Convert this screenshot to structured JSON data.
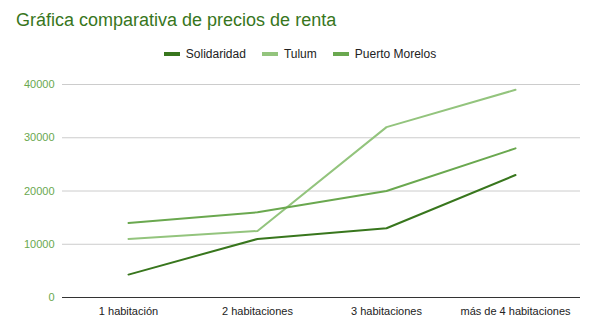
{
  "chart_data": {
    "type": "line",
    "title": "Gráfica comparativa de precios de renta",
    "categories": [
      "1 habitación",
      "2 habitaciones",
      "3 habitaciones",
      "más de 4 habitaciones"
    ],
    "series": [
      {
        "name": "Solidaridad",
        "color": "#38761d",
        "values": [
          4300,
          11000,
          13000,
          23000
        ]
      },
      {
        "name": "Tulum",
        "color": "#93c47d",
        "values": [
          11000,
          12500,
          32000,
          39000
        ]
      },
      {
        "name": "Puerto Morelos",
        "color": "#6aa84f",
        "values": [
          14000,
          16000,
          20000,
          28000
        ]
      }
    ],
    "ylim": [
      0,
      40000
    ],
    "yticks": [
      0,
      10000,
      20000,
      30000,
      40000
    ],
    "grid": true,
    "legend": "top"
  }
}
